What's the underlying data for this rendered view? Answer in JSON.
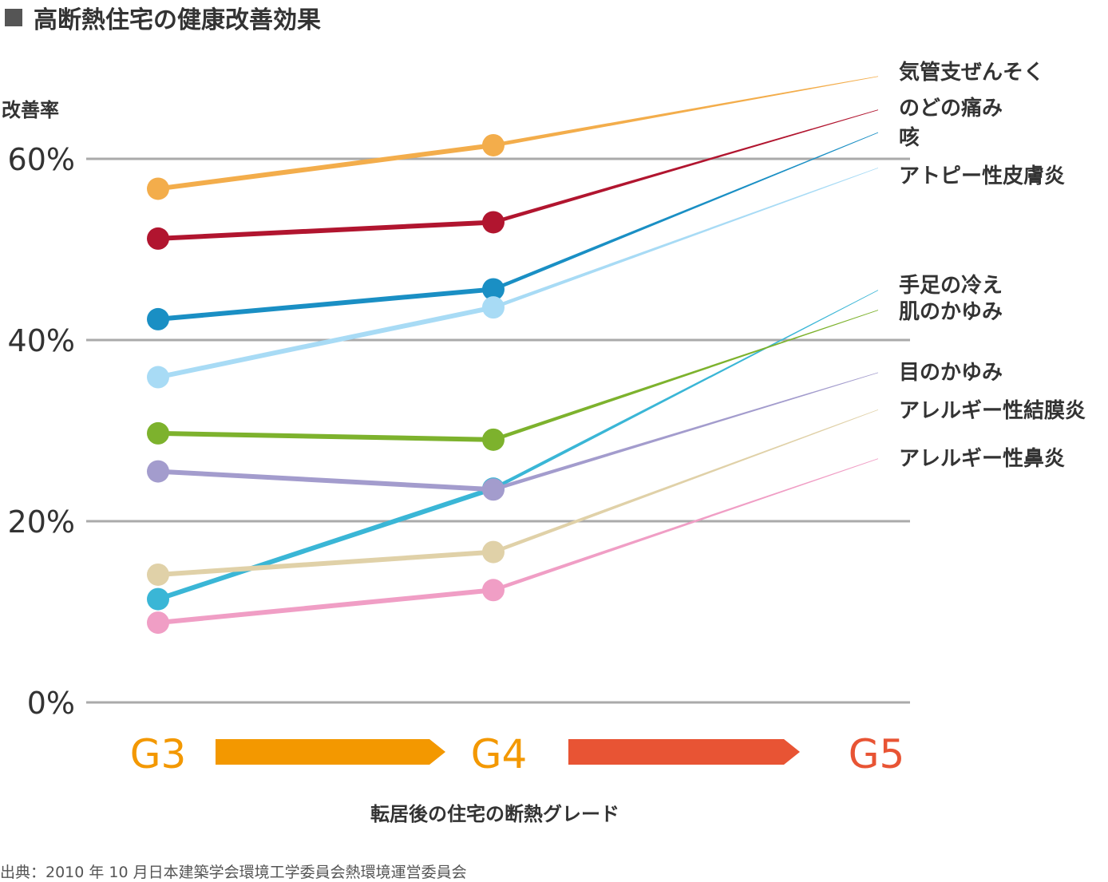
{
  "title": "高断熱住宅の健康改善効果",
  "source": "出典：2010 年 10 月日本建築学会環境工学委員会熱環境運営委員会",
  "chart_data": {
    "type": "line",
    "title": "高断熱住宅の健康改善効果",
    "ylabel": "改善率",
    "xlabel": "転居後の住宅の断熱グレード",
    "ylim": [
      0,
      60
    ],
    "yticks": [
      {
        "value": 0,
        "label": "0%"
      },
      {
        "value": 20,
        "label": "20%"
      },
      {
        "value": 40,
        "label": "40%"
      },
      {
        "value": 60,
        "label": "60%"
      }
    ],
    "grid": true,
    "categories": [
      "G3",
      "G4",
      "G5"
    ],
    "category_colors": [
      "#f39800",
      "#f39800",
      "#e85434"
    ],
    "arrow_colors": [
      "#f39800",
      "#e85434"
    ],
    "legend": "right",
    "series": [
      {
        "name": "気管支ぜんそく",
        "color": "#f3ad4b",
        "values": [
          56.7,
          61.5,
          69.1
        ]
      },
      {
        "name": "のどの痛み",
        "color": "#b1152f",
        "values": [
          51.2,
          53.0,
          65.4
        ]
      },
      {
        "name": "咳",
        "color": "#1a8fc4",
        "values": [
          42.3,
          45.6,
          62.9
        ]
      },
      {
        "name": "アトピー性皮膚炎",
        "color": "#a8dbf5",
        "values": [
          35.9,
          43.6,
          59.0
        ]
      },
      {
        "name": "手足の冷え",
        "color": "#3ab6d6",
        "values": [
          11.4,
          23.6,
          45.5
        ]
      },
      {
        "name": "肌のかゆみ",
        "color": "#7db22d",
        "values": [
          29.7,
          29.0,
          43.3
        ]
      },
      {
        "name": "目のかゆみ",
        "color": "#a39ccd",
        "values": [
          25.5,
          23.5,
          36.4
        ]
      },
      {
        "name": "アレルギー性結膜炎",
        "color": "#e0d1a8",
        "values": [
          14.1,
          16.6,
          32.3
        ]
      },
      {
        "name": "アレルギー性鼻炎",
        "color": "#f09ec5",
        "values": [
          8.8,
          12.4,
          26.9
        ]
      }
    ]
  }
}
